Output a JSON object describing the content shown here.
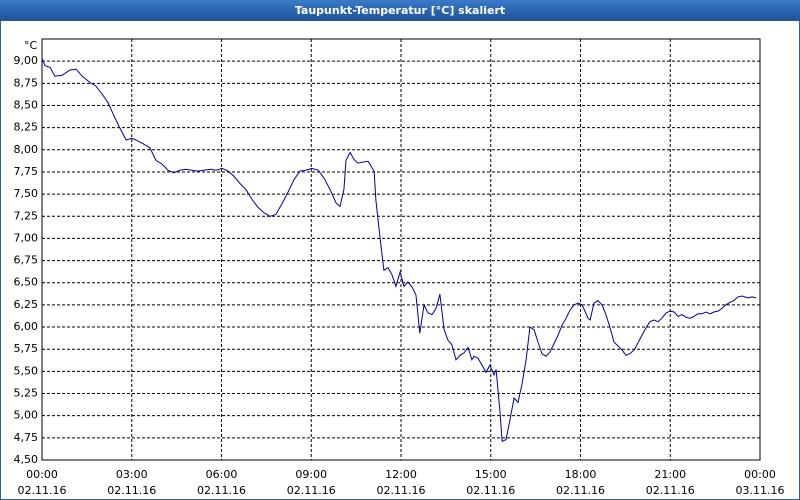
{
  "chart_data": {
    "type": "line",
    "title": "Taupunkt-Temperatur [°C] skaliert",
    "y_unit": "°C",
    "color": "#00009c",
    "grid": true,
    "xlim": [
      0,
      24
    ],
    "xticks": [
      {
        "value": 0,
        "label": "00:00",
        "date": "02.11.16"
      },
      {
        "value": 3,
        "label": "03:00",
        "date": "02.11.16"
      },
      {
        "value": 6,
        "label": "06:00",
        "date": "02.11.16"
      },
      {
        "value": 9,
        "label": "09:00",
        "date": "02.11.16"
      },
      {
        "value": 12,
        "label": "12:00",
        "date": "02.11.16"
      },
      {
        "value": 15,
        "label": "15:00",
        "date": "02.11.16"
      },
      {
        "value": 18,
        "label": "18:00",
        "date": "02.11.16"
      },
      {
        "value": 21,
        "label": "21:00",
        "date": "02.11.16"
      },
      {
        "value": 24,
        "label": "00:00",
        "date": "03.11.16"
      }
    ],
    "ylim": [
      4.5,
      9.25
    ],
    "yticks": [
      {
        "value": 4.5,
        "label": "4,50"
      },
      {
        "value": 4.75,
        "label": "4,75"
      },
      {
        "value": 5,
        "label": "5,00"
      },
      {
        "value": 5.25,
        "label": "5,25"
      },
      {
        "value": 5.5,
        "label": "5,50"
      },
      {
        "value": 5.75,
        "label": "5,75"
      },
      {
        "value": 6,
        "label": "6,00"
      },
      {
        "value": 6.25,
        "label": "6,25"
      },
      {
        "value": 6.5,
        "label": "6,50"
      },
      {
        "value": 6.75,
        "label": "6,75"
      },
      {
        "value": 7,
        "label": "7,00"
      },
      {
        "value": 7.25,
        "label": "7,25"
      },
      {
        "value": 7.5,
        "label": "7,50"
      },
      {
        "value": 7.75,
        "label": "7,75"
      },
      {
        "value": 8,
        "label": "8,00"
      },
      {
        "value": 8.25,
        "label": "8,25"
      },
      {
        "value": 8.5,
        "label": "8,50"
      },
      {
        "value": 8.75,
        "label": "8,75"
      },
      {
        "value": 9,
        "label": "9,00"
      }
    ],
    "x": [
      0,
      0.1,
      0.27,
      0.43,
      0.67,
      0.94,
      1.14,
      1.34,
      1.6,
      1.8,
      2.01,
      2.21,
      2.41,
      2.61,
      2.81,
      3.01,
      3.21,
      3.48,
      3.61,
      3.81,
      4.01,
      4.21,
      4.41,
      4.61,
      4.81,
      5.01,
      5.21,
      5.41,
      5.62,
      5.82,
      6.02,
      6.22,
      6.42,
      6.62,
      6.82,
      7.02,
      7.22,
      7.42,
      7.62,
      7.82,
      8.02,
      8.22,
      8.42,
      8.62,
      8.82,
      9.02,
      9.23,
      9.43,
      9.63,
      9.83,
      9.96,
      10.09,
      10.16,
      10.3,
      10.43,
      10.56,
      10.7,
      10.9,
      11.1,
      11.16,
      11.3,
      11.43,
      11.57,
      11.7,
      11.83,
      11.97,
      12.1,
      12.23,
      12.37,
      12.5,
      12.63,
      12.77,
      12.9,
      13.04,
      13.17,
      13.3,
      13.44,
      13.57,
      13.7,
      13.84,
      13.97,
      14.11,
      14.24,
      14.37,
      14.44,
      14.57,
      14.71,
      14.84,
      14.97,
      15.11,
      15.18,
      15.31,
      15.38,
      15.51,
      15.64,
      15.78,
      15.91,
      16.04,
      16.18,
      16.31,
      16.45,
      16.58,
      16.71,
      16.85,
      16.98,
      17.11,
      17.25,
      17.38,
      17.52,
      17.65,
      17.78,
      17.92,
      18.05,
      18.12,
      18.25,
      18.32,
      18.45,
      18.58,
      18.72,
      18.85,
      18.99,
      19.12,
      19.25,
      19.39,
      19.52,
      19.65,
      19.79,
      19.92,
      20.06,
      20.19,
      20.32,
      20.46,
      20.59,
      20.72,
      20.86,
      20.99,
      21.13,
      21.26,
      21.39,
      21.53,
      21.66,
      21.79,
      21.93,
      22.06,
      22.19,
      22.33,
      22.46,
      22.6,
      22.73,
      22.86,
      23.0,
      23.13,
      23.26,
      23.4,
      23.6,
      23.73,
      23.87
    ],
    "values": [
      9.03,
      8.95,
      8.93,
      8.83,
      8.84,
      8.9,
      8.91,
      8.83,
      8.76,
      8.72,
      8.63,
      8.53,
      8.38,
      8.24,
      8.11,
      8.13,
      8.1,
      8.05,
      8.02,
      7.88,
      7.84,
      7.77,
      7.74,
      7.77,
      7.78,
      7.77,
      7.76,
      7.77,
      7.78,
      7.77,
      7.79,
      7.76,
      7.7,
      7.62,
      7.55,
      7.44,
      7.35,
      7.29,
      7.25,
      7.27,
      7.39,
      7.52,
      7.66,
      7.76,
      7.77,
      7.79,
      7.77,
      7.68,
      7.55,
      7.4,
      7.36,
      7.55,
      7.88,
      7.97,
      7.89,
      7.85,
      7.86,
      7.87,
      7.76,
      7.43,
      7.0,
      6.64,
      6.67,
      6.59,
      6.46,
      6.62,
      6.46,
      6.51,
      6.45,
      6.36,
      5.93,
      6.25,
      6.16,
      6.14,
      6.21,
      6.37,
      5.97,
      5.85,
      5.8,
      5.63,
      5.68,
      5.71,
      5.77,
      5.63,
      5.67,
      5.65,
      5.57,
      5.49,
      5.57,
      5.46,
      5.52,
      5.04,
      4.71,
      4.73,
      4.95,
      5.2,
      5.15,
      5.35,
      5.63,
      6.0,
      5.97,
      5.83,
      5.7,
      5.67,
      5.72,
      5.81,
      5.91,
      6.02,
      6.1,
      6.19,
      6.25,
      6.27,
      6.25,
      6.2,
      6.1,
      6.08,
      6.27,
      6.3,
      6.25,
      6.14,
      5.99,
      5.83,
      5.79,
      5.74,
      5.68,
      5.7,
      5.74,
      5.82,
      5.91,
      5.99,
      6.06,
      6.08,
      6.06,
      6.1,
      6.16,
      6.18,
      6.17,
      6.12,
      6.14,
      6.11,
      6.1,
      6.12,
      6.15,
      6.15,
      6.17,
      6.15,
      6.17,
      6.18,
      6.21,
      6.25,
      6.28,
      6.3,
      6.34,
      6.35,
      6.33,
      6.34,
      6.33
    ]
  }
}
